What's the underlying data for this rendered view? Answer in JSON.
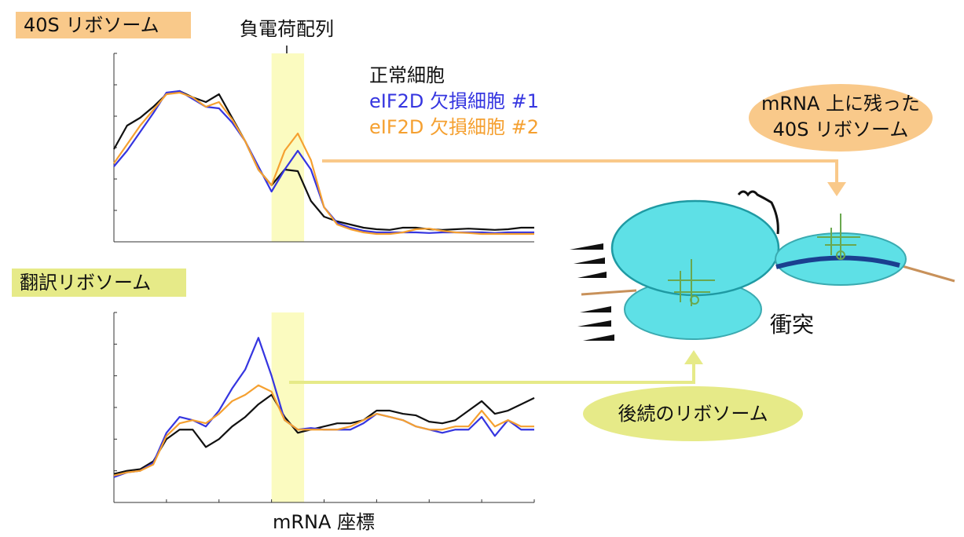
{
  "chart_data": [
    {
      "type": "line",
      "title": "40S リボソーム",
      "annotation": "負電荷配列",
      "x": [
        0,
        0.25,
        0.5,
        0.75,
        1,
        1.25,
        1.5,
        1.75,
        2,
        2.25,
        2.5,
        2.75,
        3,
        3.25,
        3.5,
        3.75,
        4,
        4.25,
        4.5,
        4.75,
        5,
        5.25,
        5.5,
        5.75,
        6,
        6.25,
        6.5,
        6.75,
        7,
        7.25,
        7.5,
        7.75,
        8
      ],
      "xlim": [
        0,
        8
      ],
      "ylim": [
        0,
        6
      ],
      "yticks": [
        0,
        1,
        2,
        3,
        4,
        5,
        6
      ],
      "highlight": [
        3,
        3.62
      ],
      "series": [
        {
          "name": "正常細胞",
          "color": "#111111",
          "values": [
            2.95,
            3.7,
            3.95,
            4.3,
            4.7,
            4.8,
            4.6,
            4.45,
            4.7,
            3.95,
            3.2,
            2.3,
            1.8,
            2.3,
            2.25,
            1.3,
            0.8,
            0.65,
            0.55,
            0.45,
            0.4,
            0.38,
            0.45,
            0.45,
            0.4,
            0.38,
            0.4,
            0.42,
            0.4,
            0.38,
            0.4,
            0.45,
            0.45
          ]
        },
        {
          "name": "eIF2D 欠損細胞 #1",
          "color": "#3535e0",
          "values": [
            2.4,
            2.9,
            3.5,
            4.1,
            4.75,
            4.8,
            4.55,
            4.3,
            4.25,
            3.8,
            3.2,
            2.4,
            1.6,
            2.3,
            2.9,
            2.3,
            1.1,
            0.6,
            0.45,
            0.35,
            0.3,
            0.3,
            0.3,
            0.3,
            0.28,
            0.3,
            0.3,
            0.3,
            0.3,
            0.28,
            0.3,
            0.3,
            0.3
          ]
        },
        {
          "name": "eIF2D 欠損細胞 #2",
          "color": "#f5a030",
          "values": [
            2.5,
            3.1,
            3.7,
            4.2,
            4.7,
            4.75,
            4.6,
            4.3,
            4.45,
            3.9,
            3.2,
            2.3,
            1.8,
            2.9,
            3.45,
            2.6,
            1.1,
            0.55,
            0.4,
            0.3,
            0.25,
            0.25,
            0.3,
            0.4,
            0.42,
            0.35,
            0.3,
            0.28,
            0.25,
            0.25,
            0.25,
            0.25,
            0.25
          ]
        }
      ]
    },
    {
      "type": "line",
      "title": "翻訳リボソーム",
      "x_label": "mRNA 座標",
      "x": [
        0,
        0.25,
        0.5,
        0.75,
        1,
        1.25,
        1.5,
        1.75,
        2,
        2.25,
        2.5,
        2.75,
        3,
        3.25,
        3.5,
        3.75,
        4,
        4.25,
        4.5,
        4.75,
        5,
        5.25,
        5.5,
        5.75,
        6,
        6.25,
        6.5,
        6.75,
        7,
        7.25,
        7.5,
        7.75,
        8
      ],
      "xlim": [
        0,
        8
      ],
      "ylim": [
        0,
        6
      ],
      "xticks": [
        0,
        1,
        2,
        3,
        4,
        5,
        6,
        7,
        8
      ],
      "yticks": [
        0,
        1,
        2,
        3,
        4,
        5,
        6
      ],
      "highlight": [
        3,
        3.62
      ],
      "series": [
        {
          "color": "#111111",
          "values": [
            0.9,
            1.0,
            1.05,
            1.3,
            2.0,
            2.3,
            2.3,
            1.75,
            2.0,
            2.4,
            2.7,
            3.1,
            3.4,
            2.7,
            2.2,
            2.3,
            2.4,
            2.5,
            2.5,
            2.6,
            2.9,
            2.9,
            2.8,
            2.75,
            2.55,
            2.5,
            2.6,
            2.9,
            3.2,
            2.8,
            2.9,
            3.1,
            3.3
          ]
        },
        {
          "color": "#3535e0",
          "values": [
            0.8,
            0.95,
            1.0,
            1.25,
            2.2,
            2.7,
            2.6,
            2.4,
            2.9,
            3.6,
            4.2,
            5.2,
            4.0,
            2.6,
            2.3,
            2.35,
            2.3,
            2.3,
            2.3,
            2.5,
            2.8,
            2.7,
            2.6,
            2.4,
            2.3,
            2.2,
            2.3,
            2.3,
            2.7,
            2.1,
            2.6,
            2.3,
            2.3
          ]
        },
        {
          "color": "#f5a030",
          "values": [
            0.85,
            0.95,
            1.0,
            1.2,
            2.1,
            2.5,
            2.6,
            2.5,
            2.8,
            3.2,
            3.4,
            3.7,
            3.5,
            2.6,
            2.3,
            2.3,
            2.3,
            2.3,
            2.4,
            2.6,
            2.8,
            2.7,
            2.6,
            2.4,
            2.3,
            2.3,
            2.4,
            2.4,
            2.9,
            2.4,
            2.6,
            2.4,
            2.4
          ]
        }
      ]
    }
  ],
  "diagram": {
    "callout_top": [
      "mRNA 上に残った",
      "40S リボソーム"
    ],
    "collision": "衝突",
    "callout_bottom": "後続のリボソーム"
  }
}
